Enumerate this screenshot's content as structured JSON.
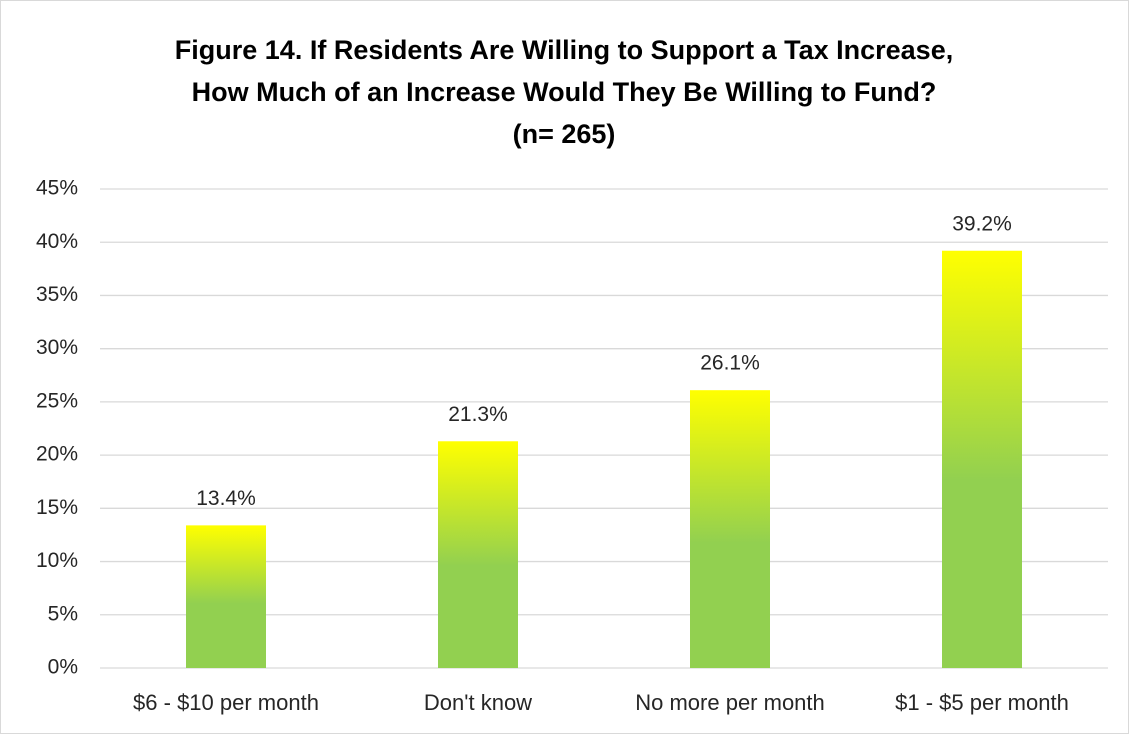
{
  "chart_data": {
    "type": "bar",
    "title": [
      "Figure 14.  If Residents Are Willing to Support a Tax Increase,",
      "How Much of an Increase Would They Be Willing to Fund?",
      "(n= 265)"
    ],
    "categories": [
      "$6 - $10 per month",
      "Don't know",
      "No more per month",
      "$1 - $5 per month"
    ],
    "values": [
      13.4,
      21.3,
      26.1,
      39.2
    ],
    "value_labels": [
      "13.4%",
      "21.3%",
      "26.1%",
      "39.2%"
    ],
    "color": [
      "#ffff00",
      "#92d050"
    ],
    "ylim": [
      0,
      45
    ],
    "yticks": [
      {
        "value": 0,
        "label": "0%"
      },
      {
        "value": 5,
        "label": "5%"
      },
      {
        "value": 10,
        "label": "10%"
      },
      {
        "value": 15,
        "label": "15%"
      },
      {
        "value": 20,
        "label": "20%"
      },
      {
        "value": 25,
        "label": "25%"
      },
      {
        "value": 30,
        "label": "30%"
      },
      {
        "value": 35,
        "label": "35%"
      },
      {
        "value": 40,
        "label": "40%"
      },
      {
        "value": 45,
        "label": "45%"
      }
    ],
    "grid": true
  }
}
